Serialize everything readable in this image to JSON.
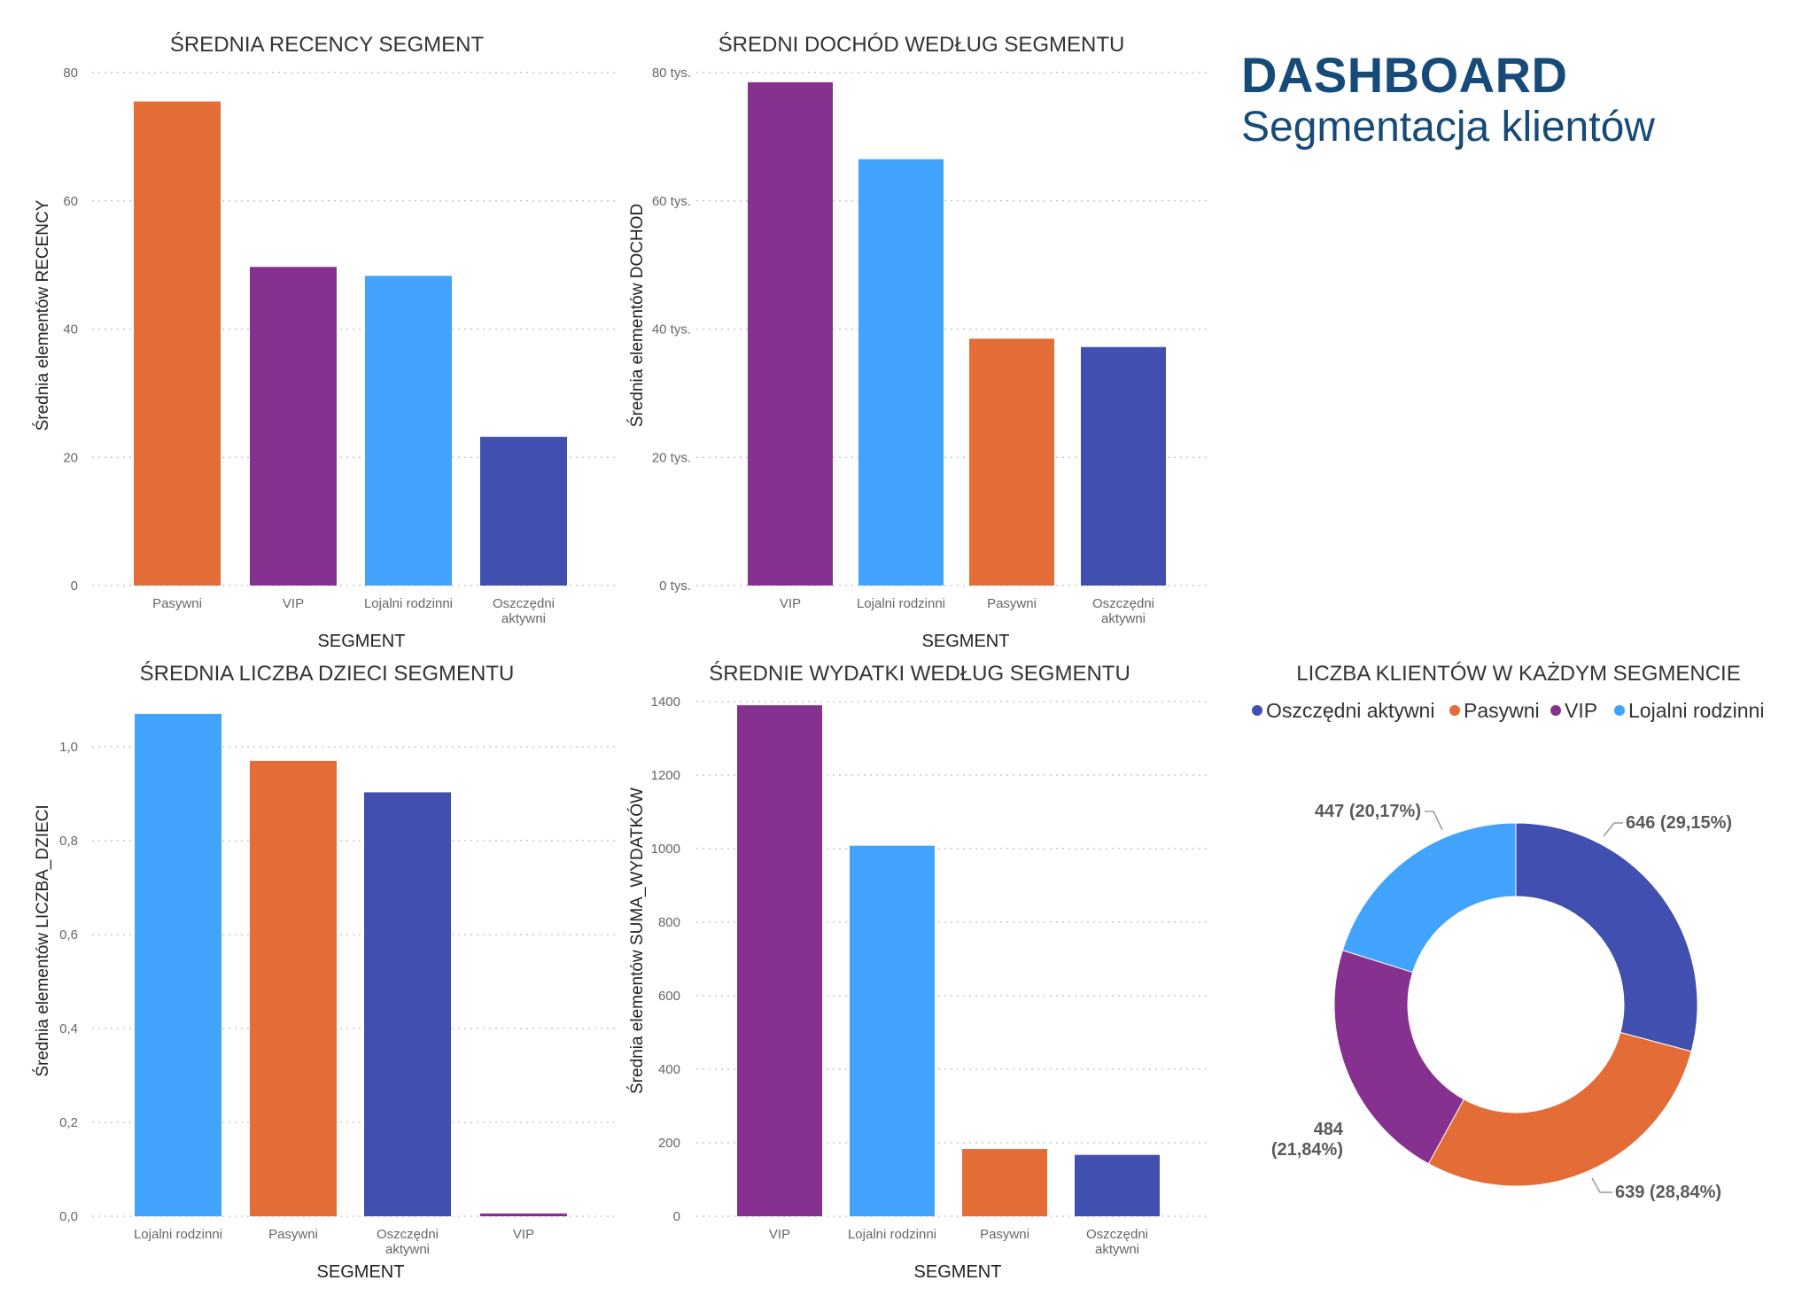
{
  "header": {
    "title": "DASHBOARD",
    "subtitle": "Segmentacja klientów"
  },
  "chart_data": [
    {
      "type": "bar",
      "title": "ŚREDNIA RECENCY SEGMENT",
      "xlabel": "SEGMENT",
      "ylabel": "Średnia elementów RECENCY",
      "categories": [
        "Pasywni",
        "VIP",
        "Lojalni rodzinni",
        "Oszczędni aktywni"
      ],
      "values": [
        75.5,
        49.7,
        48.3,
        23.2
      ],
      "colors": [
        "#e46c37",
        "#86308f",
        "#41a3fb",
        "#4150b0"
      ],
      "ylim": [
        0,
        80
      ],
      "ticks": [
        0,
        20,
        40,
        60,
        80
      ],
      "tick_labels": [
        "0",
        "20",
        "40",
        "60",
        "80"
      ],
      "grid": true
    },
    {
      "type": "bar",
      "title": "ŚREDNI DOCHÓD WEDŁUG SEGMENTU",
      "xlabel": "SEGMENT",
      "ylabel": "Średnia elementów DOCHOD",
      "categories": [
        "VIP",
        "Lojalni rodzinni",
        "Pasywni",
        "Oszczędni aktywni"
      ],
      "values": [
        78500,
        66500,
        38500,
        37200
      ],
      "colors": [
        "#86308f",
        "#41a3fb",
        "#e46c37",
        "#4150b0"
      ],
      "ylim": [
        0,
        80000
      ],
      "ticks": [
        0,
        20000,
        40000,
        60000,
        80000
      ],
      "tick_labels": [
        "0 tys.",
        "20 tys.",
        "40 tys.",
        "60 tys.",
        "80 tys."
      ],
      "grid": true
    },
    {
      "type": "bar",
      "title": "ŚREDNIA LICZBA DZIECI SEGMENTU",
      "xlabel": "SEGMENT",
      "ylabel": "Średnia elementów LICZBA_DZIECI",
      "categories": [
        "Lojalni rodzinni",
        "Pasywni",
        "Oszczędni aktywni",
        "VIP"
      ],
      "values": [
        1.07,
        0.97,
        0.903,
        0.006
      ],
      "colors": [
        "#41a3fb",
        "#e46c37",
        "#4150b0",
        "#86308f"
      ],
      "ylim": [
        0,
        1.1
      ],
      "ticks": [
        0,
        0.2,
        0.4,
        0.6,
        0.8,
        1.0
      ],
      "tick_labels": [
        "0,0",
        "0,2",
        "0,4",
        "0,6",
        "0,8",
        "1,0"
      ],
      "grid": true
    },
    {
      "type": "bar",
      "title": "ŚREDNIE WYDATKI WEDŁUG SEGMENTU",
      "xlabel": "SEGMENT",
      "ylabel": "Średnia elementów SUMA_WYDATKÓW",
      "categories": [
        "VIP",
        "Lojalni rodzinni",
        "Pasywni",
        "Oszczędni aktywni"
      ],
      "values": [
        1390,
        1008,
        183,
        167
      ],
      "colors": [
        "#86308f",
        "#41a3fb",
        "#e46c37",
        "#4150b0"
      ],
      "ylim": [
        0,
        1400
      ],
      "ticks": [
        0,
        200,
        400,
        600,
        800,
        1000,
        1200,
        1400
      ],
      "tick_labels": [
        "0",
        "200",
        "400",
        "600",
        "800",
        "1000",
        "1200",
        "1400"
      ],
      "grid": true
    },
    {
      "type": "pie",
      "title": "LICZBA KLIENTÓW W KAŻDYM SEGMENCIE",
      "legend": "top",
      "slices": [
        {
          "name": "Oszczędni aktywni",
          "value": 646,
          "label": "646 (29,15%)",
          "color": "#4150b0"
        },
        {
          "name": "Pasywni",
          "value": 639,
          "label": "639 (28,84%)",
          "color": "#e46c37"
        },
        {
          "name": "VIP",
          "value": 484,
          "label_lines": [
            "484",
            "(21,84%)"
          ],
          "color": "#86308f"
        },
        {
          "name": "Lojalni rodzinni",
          "value": 447,
          "label": "447 (20,17%)",
          "color": "#41a3fb"
        }
      ]
    }
  ]
}
